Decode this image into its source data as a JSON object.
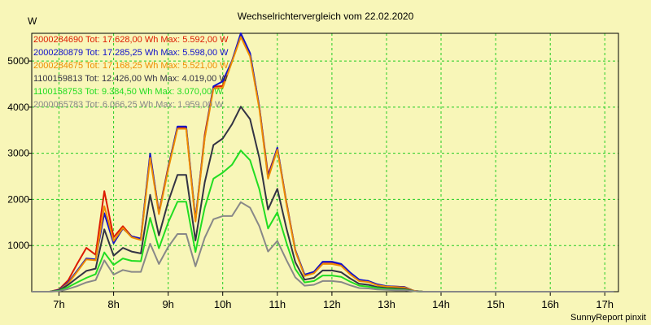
{
  "chart_data": {
    "type": "line",
    "title": "Wechselrichtervergleich vom 22.02.2020",
    "ylabel": "W",
    "xlabel": "",
    "footer": "SunnyReport pinxit",
    "xlim": [
      6.5,
      17.25
    ],
    "ylim": [
      0,
      5600
    ],
    "grid": true,
    "x_ticks": [
      7,
      8,
      9,
      10,
      11,
      12,
      13,
      14,
      15,
      16,
      17
    ],
    "x_tick_labels": [
      "7h",
      "8h",
      "9h",
      "10h",
      "11h",
      "12h",
      "13h",
      "14h",
      "15h",
      "16h",
      "17h"
    ],
    "y_ticks": [
      1000,
      2000,
      3000,
      4000,
      5000
    ],
    "y_tick_labels": [
      "1000",
      "2000",
      "3000",
      "4000",
      "5000"
    ],
    "legend_position": "top-left",
    "x": [
      6.5,
      6.83,
      7.0,
      7.17,
      7.33,
      7.5,
      7.67,
      7.83,
      8.0,
      8.17,
      8.33,
      8.5,
      8.67,
      8.83,
      9.0,
      9.17,
      9.33,
      9.5,
      9.67,
      9.83,
      10.0,
      10.17,
      10.33,
      10.5,
      10.67,
      10.83,
      11.0,
      11.17,
      11.33,
      11.5,
      11.67,
      11.83,
      12.0,
      12.17,
      12.33,
      12.5,
      12.67,
      12.83,
      13.0,
      13.17,
      13.33,
      13.5,
      13.67,
      13.83,
      14.0,
      14.17,
      14.33,
      14.5,
      14.67,
      14.83,
      15.0,
      15.17,
      15.33,
      15.5,
      15.67,
      15.83,
      16.0,
      16.17,
      16.33,
      16.5,
      16.67,
      16.83,
      17.0,
      17.17
    ],
    "series": [
      {
        "name": "2000284690",
        "legend": "2000284690 Tot: 17.628,00 Wh Max: 5.592,00 W",
        "color": "#dd1a00",
        "values": [
          0,
          0,
          50,
          250,
          600,
          950,
          800,
          2180,
          1180,
          1420,
          1200,
          1150,
          2950,
          1720,
          2700,
          3560,
          3560,
          1540,
          3400,
          4440,
          4460,
          5000,
          5570,
          5150,
          4000,
          2530,
          3110,
          1920,
          900,
          360,
          430,
          640,
          640,
          590,
          400,
          250,
          230,
          150,
          120,
          110,
          100,
          20,
          0,
          0,
          0,
          0,
          0,
          0,
          0,
          0,
          0,
          0,
          0,
          0,
          0,
          0,
          0,
          0,
          0,
          0,
          0,
          0,
          0,
          0
        ]
      },
      {
        "name": "2000280879",
        "legend": "2000280879 Tot: 17.285,25 Wh Max: 5.598,00 W",
        "color": "#1010cc",
        "values": [
          0,
          0,
          40,
          200,
          450,
          720,
          700,
          1700,
          1050,
          1370,
          1200,
          1150,
          2990,
          1700,
          2680,
          3580,
          3580,
          1570,
          3350,
          4450,
          4560,
          5000,
          5600,
          5170,
          4000,
          2480,
          3120,
          1900,
          900,
          370,
          430,
          650,
          650,
          600,
          420,
          260,
          230,
          160,
          120,
          110,
          100,
          20,
          0,
          0,
          0,
          0,
          0,
          0,
          0,
          0,
          0,
          0,
          0,
          0,
          0,
          0,
          0,
          0,
          0,
          0,
          0,
          0,
          0,
          0
        ]
      },
      {
        "name": "2000284675",
        "legend": "2000284675 Tot: 17.168,25 Wh Max: 5.521,00 W",
        "color": "#ee8c00",
        "values": [
          0,
          0,
          30,
          180,
          430,
          700,
          680,
          1850,
          1100,
          1380,
          1180,
          1120,
          2900,
          1680,
          2650,
          3530,
          3530,
          1520,
          3330,
          4400,
          4420,
          4980,
          5520,
          5100,
          3960,
          2450,
          3080,
          1880,
          880,
          340,
          400,
          600,
          600,
          560,
          380,
          230,
          210,
          140,
          110,
          100,
          90,
          20,
          0,
          0,
          0,
          0,
          0,
          0,
          0,
          0,
          0,
          0,
          0,
          0,
          0,
          0,
          0,
          0,
          0,
          0,
          0,
          0,
          0,
          0
        ]
      },
      {
        "name": "1100159813",
        "legend": "1100159813 Tot: 12.426,00 Wh Max: 4.019,00 W",
        "color": "#333344",
        "values": [
          0,
          0,
          30,
          150,
          300,
          450,
          500,
          1350,
          780,
          950,
          870,
          830,
          2100,
          1220,
          1950,
          2530,
          2530,
          1110,
          2370,
          3180,
          3320,
          3630,
          4010,
          3740,
          2900,
          1780,
          2230,
          1360,
          640,
          260,
          300,
          460,
          460,
          420,
          290,
          170,
          150,
          100,
          80,
          70,
          60,
          10,
          0,
          0,
          0,
          0,
          0,
          0,
          0,
          0,
          0,
          0,
          0,
          0,
          0,
          0,
          0,
          0,
          0,
          0,
          0,
          0,
          0,
          0
        ]
      },
      {
        "name": "1100158753",
        "legend": "1100158753 Tot: 9.384,50 Wh Max: 3.070,00 W",
        "color": "#22dd22",
        "values": [
          0,
          0,
          20,
          100,
          200,
          300,
          380,
          850,
          580,
          720,
          670,
          660,
          1600,
          940,
          1500,
          1950,
          1950,
          860,
          1820,
          2450,
          2580,
          2750,
          3060,
          2850,
          2220,
          1370,
          1720,
          1050,
          490,
          200,
          230,
          350,
          350,
          320,
          220,
          130,
          110,
          80,
          60,
          50,
          40,
          10,
          0,
          0,
          0,
          0,
          0,
          0,
          0,
          0,
          0,
          0,
          0,
          0,
          0,
          0,
          0,
          0,
          0,
          0,
          0,
          0,
          0,
          0
        ]
      },
      {
        "name": "2000065783",
        "legend": "2000065783 Tot: 6.066,25 Wh Max: 1.959,00 W",
        "color": "#888888",
        "values": [
          0,
          0,
          10,
          60,
          120,
          200,
          250,
          680,
          370,
          470,
          430,
          430,
          1040,
          600,
          970,
          1250,
          1250,
          550,
          1170,
          1570,
          1640,
          1640,
          1940,
          1820,
          1420,
          870,
          1100,
          680,
          310,
          130,
          150,
          230,
          230,
          210,
          140,
          80,
          70,
          50,
          40,
          30,
          30,
          10,
          0,
          0,
          0,
          0,
          0,
          0,
          0,
          0,
          0,
          0,
          0,
          0,
          0,
          0,
          0,
          0,
          0,
          0,
          0,
          0,
          0,
          0
        ]
      }
    ]
  }
}
